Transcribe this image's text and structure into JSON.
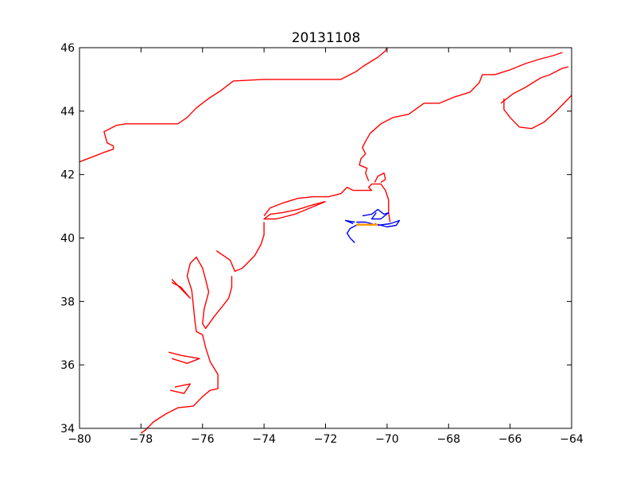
{
  "chart_data": {
    "type": "map",
    "title": "20131108",
    "xlabel": "",
    "ylabel": "",
    "xlim": [
      -80,
      -64
    ],
    "ylim": [
      34,
      46
    ],
    "xticks": [
      -80,
      -78,
      -76,
      -74,
      -72,
      -70,
      -68,
      -66,
      -64
    ],
    "xtick_labels": [
      "−80",
      "−78",
      "−76",
      "−74",
      "−72",
      "−70",
      "−68",
      "−66",
      "−64"
    ],
    "yticks": [
      34,
      36,
      38,
      40,
      42,
      44,
      46
    ],
    "ytick_labels": [
      "34",
      "36",
      "38",
      "40",
      "42",
      "44",
      "46"
    ],
    "grid": false,
    "colors": {
      "coastline": "#ff0000",
      "drifter_tracks": "#0000ff",
      "highlight_track": "#ff9900"
    },
    "series": [
      {
        "kind": "coastline",
        "color": "#ff0000",
        "segments": [
          [
            [
              -80.0,
              42.4
            ],
            [
              -79.6,
              42.55
            ],
            [
              -79.2,
              42.7
            ],
            [
              -78.9,
              42.8
            ],
            [
              -78.9,
              42.9
            ],
            [
              -79.1,
              43.0
            ],
            [
              -79.2,
              43.35
            ],
            [
              -78.8,
              43.55
            ],
            [
              -78.5,
              43.6
            ],
            [
              -77.0,
              43.6
            ],
            [
              -76.8,
              43.6
            ],
            [
              -76.5,
              43.8
            ],
            [
              -76.2,
              44.1
            ],
            [
              -75.8,
              44.4
            ],
            [
              -75.4,
              44.65
            ],
            [
              -75.0,
              44.95
            ],
            [
              -74.0,
              45.0
            ],
            [
              -72.0,
              45.0
            ],
            [
              -71.5,
              45.0
            ],
            [
              -71.0,
              45.25
            ],
            [
              -70.8,
              45.4
            ],
            [
              -70.3,
              45.7
            ],
            [
              -70.05,
              45.9
            ],
            [
              -70.0,
              46.0
            ]
          ],
          [
            [
              -69.9,
              40.5
            ],
            [
              -69.95,
              40.8
            ],
            [
              -69.95,
              41.2
            ],
            [
              -70.05,
              41.5
            ],
            [
              -70.2,
              41.7
            ],
            [
              -70.5,
              41.7
            ],
            [
              -70.6,
              41.6
            ],
            [
              -70.5,
              41.5
            ],
            [
              -70.8,
              41.5
            ],
            [
              -71.1,
              41.5
            ],
            [
              -71.3,
              41.6
            ],
            [
              -71.5,
              41.4
            ],
            [
              -71.9,
              41.3
            ],
            [
              -72.4,
              41.3
            ],
            [
              -72.9,
              41.25
            ],
            [
              -73.4,
              41.1
            ],
            [
              -73.8,
              40.95
            ],
            [
              -74.0,
              40.7
            ]
          ],
          [
            [
              -72.0,
              41.15
            ],
            [
              -72.4,
              41.05
            ],
            [
              -72.9,
              40.9
            ],
            [
              -73.4,
              40.8
            ],
            [
              -73.8,
              40.75
            ],
            [
              -74.0,
              40.6
            ],
            [
              -73.6,
              40.6
            ],
            [
              -73.0,
              40.75
            ],
            [
              -72.5,
              40.95
            ],
            [
              -72.0,
              41.15
            ]
          ],
          [
            [
              -70.4,
              41.75
            ],
            [
              -70.3,
              41.95
            ],
            [
              -70.1,
              42.05
            ],
            [
              -70.05,
              41.85
            ],
            [
              -70.2,
              41.75
            ]
          ],
          [
            [
              -70.6,
              41.8
            ],
            [
              -70.7,
              42.05
            ],
            [
              -70.65,
              42.2
            ],
            [
              -70.9,
              42.3
            ],
            [
              -70.85,
              42.5
            ],
            [
              -70.7,
              42.65
            ],
            [
              -70.8,
              42.85
            ],
            [
              -70.7,
              43.05
            ],
            [
              -70.55,
              43.3
            ],
            [
              -70.2,
              43.6
            ],
            [
              -69.8,
              43.8
            ],
            [
              -69.3,
              43.9
            ],
            [
              -68.8,
              44.25
            ],
            [
              -68.3,
              44.25
            ],
            [
              -67.8,
              44.45
            ],
            [
              -67.3,
              44.6
            ],
            [
              -67.0,
              44.9
            ],
            [
              -66.9,
              45.15
            ],
            [
              -66.5,
              45.15
            ],
            [
              -66.0,
              45.3
            ],
            [
              -65.5,
              45.5
            ],
            [
              -65.0,
              45.65
            ],
            [
              -64.6,
              45.75
            ],
            [
              -64.3,
              45.85
            ]
          ],
          [
            [
              -66.3,
              44.25
            ],
            [
              -65.9,
              44.55
            ],
            [
              -65.5,
              44.75
            ],
            [
              -65.0,
              45.05
            ],
            [
              -64.7,
              45.15
            ],
            [
              -64.3,
              45.35
            ],
            [
              -64.1,
              45.4
            ]
          ],
          [
            [
              -66.2,
              44.4
            ],
            [
              -66.2,
              44.05
            ],
            [
              -66.0,
              43.8
            ],
            [
              -65.7,
              43.5
            ],
            [
              -65.3,
              43.45
            ],
            [
              -64.9,
              43.65
            ],
            [
              -64.5,
              44.0
            ],
            [
              -64.2,
              44.3
            ],
            [
              -64.0,
              44.5
            ]
          ],
          [
            [
              -74.0,
              40.5
            ],
            [
              -74.0,
              40.1
            ],
            [
              -74.1,
              39.8
            ],
            [
              -74.3,
              39.45
            ],
            [
              -74.7,
              39.05
            ],
            [
              -74.95,
              38.95
            ],
            [
              -75.1,
              39.3
            ],
            [
              -75.55,
              39.6
            ]
          ],
          [
            [
              -75.05,
              38.8
            ],
            [
              -75.05,
              38.45
            ],
            [
              -75.15,
              38.1
            ],
            [
              -75.35,
              37.85
            ],
            [
              -75.6,
              37.55
            ],
            [
              -75.9,
              37.15
            ],
            [
              -76.0,
              37.3
            ],
            [
              -75.95,
              37.75
            ],
            [
              -75.8,
              38.3
            ],
            [
              -75.9,
              38.7
            ],
            [
              -76.0,
              39.05
            ],
            [
              -76.2,
              39.4
            ],
            [
              -76.4,
              39.2
            ],
            [
              -76.5,
              38.8
            ],
            [
              -76.35,
              38.35
            ],
            [
              -76.3,
              37.9
            ],
            [
              -76.25,
              37.4
            ],
            [
              -76.2,
              37.05
            ],
            [
              -76.0,
              36.95
            ],
            [
              -75.9,
              36.55
            ],
            [
              -75.75,
              36.1
            ],
            [
              -75.5,
              35.7
            ],
            [
              -75.5,
              35.25
            ],
            [
              -75.75,
              35.2
            ],
            [
              -76.0,
              35.0
            ],
            [
              -76.3,
              34.7
            ],
            [
              -76.8,
              34.65
            ],
            [
              -77.2,
              34.45
            ],
            [
              -77.6,
              34.2
            ],
            [
              -77.85,
              33.95
            ],
            [
              -78.0,
              33.85
            ]
          ],
          [
            [
              -77.0,
              38.7
            ],
            [
              -76.6,
              38.3
            ],
            [
              -76.4,
              38.1
            ],
            [
              -76.7,
              38.45
            ],
            [
              -77.0,
              38.6
            ]
          ],
          [
            [
              -77.1,
              36.4
            ],
            [
              -76.7,
              36.3
            ],
            [
              -76.1,
              36.2
            ],
            [
              -76.5,
              36.05
            ],
            [
              -77.0,
              36.2
            ]
          ],
          [
            [
              -77.05,
              35.2
            ],
            [
              -76.6,
              35.1
            ],
            [
              -76.4,
              35.4
            ],
            [
              -76.9,
              35.3
            ]
          ]
        ]
      },
      {
        "kind": "drifter_tracks",
        "color": "#0000ff",
        "segments": [
          [
            [
              -71.0,
              40.5
            ],
            [
              -70.7,
              40.5
            ],
            [
              -70.3,
              40.4
            ],
            [
              -69.9,
              40.45
            ],
            [
              -69.6,
              40.55
            ],
            [
              -69.7,
              40.4
            ],
            [
              -70.0,
              40.35
            ],
            [
              -70.4,
              40.45
            ]
          ],
          [
            [
              -70.8,
              40.7
            ],
            [
              -70.5,
              40.75
            ],
            [
              -70.3,
              40.9
            ],
            [
              -70.1,
              40.75
            ],
            [
              -69.95,
              40.8
            ],
            [
              -70.2,
              40.6
            ],
            [
              -70.5,
              40.6
            ],
            [
              -70.35,
              40.8
            ]
          ],
          [
            [
              -70.9,
              40.45
            ],
            [
              -71.2,
              40.3
            ],
            [
              -71.3,
              40.15
            ],
            [
              -71.2,
              40.0
            ],
            [
              -71.05,
              39.85
            ]
          ],
          [
            [
              -71.05,
              40.5
            ],
            [
              -71.35,
              40.55
            ],
            [
              -71.1,
              40.45
            ]
          ]
        ]
      },
      {
        "kind": "highlight_track",
        "color": "#ff9900",
        "segments": [
          [
            [
              -71.0,
              40.42
            ],
            [
              -70.3,
              40.42
            ]
          ]
        ]
      }
    ]
  }
}
